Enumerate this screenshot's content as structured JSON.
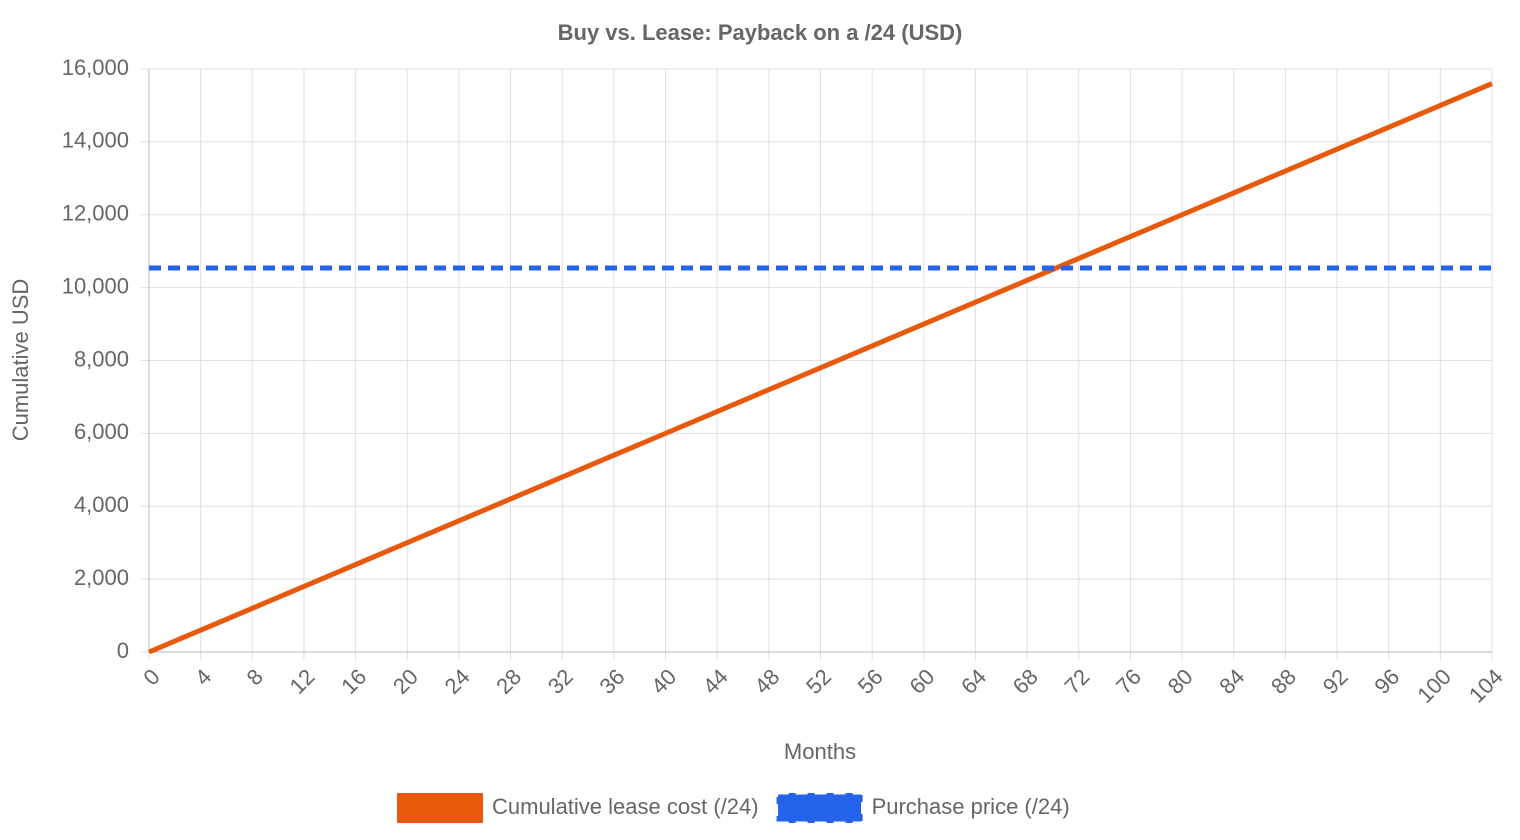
{
  "chart_data": {
    "type": "line",
    "title": "Buy vs. Lease: Payback on a /24 (USD)",
    "x_label": "Months",
    "y_label": "Cumulative USD",
    "x": [
      0,
      4,
      8,
      12,
      16,
      20,
      24,
      28,
      32,
      36,
      40,
      44,
      48,
      52,
      56,
      60,
      64,
      68,
      72,
      76,
      80,
      84,
      88,
      92,
      96,
      100,
      104
    ],
    "series": [
      {
        "name": "Cumulative lease cost (/24)",
        "color": "#e8590c",
        "dashed": false,
        "values": [
          0,
          600,
          1200,
          1800,
          2400,
          3000,
          3600,
          4200,
          4800,
          5400,
          6000,
          6600,
          7200,
          7800,
          8400,
          9000,
          9600,
          10200,
          10800,
          11400,
          12000,
          12600,
          13200,
          13800,
          14400,
          15000,
          15600
        ]
      },
      {
        "name": "Purchase price (/24)",
        "color": "#2563eb",
        "dashed": true,
        "values": [
          10540,
          10540,
          10540,
          10540,
          10540,
          10540,
          10540,
          10540,
          10540,
          10540,
          10540,
          10540,
          10540,
          10540,
          10540,
          10540,
          10540,
          10540,
          10540,
          10540,
          10540,
          10540,
          10540,
          10540,
          10540,
          10540,
          10540
        ]
      }
    ],
    "xlim": [
      0,
      104
    ],
    "xticks": [
      0,
      4,
      8,
      12,
      16,
      20,
      24,
      28,
      32,
      36,
      40,
      44,
      48,
      52,
      56,
      60,
      64,
      68,
      72,
      76,
      80,
      84,
      88,
      92,
      96,
      100,
      104
    ],
    "ylim": [
      0,
      16000
    ],
    "yticks": [
      0,
      {
        "value": 2000,
        "label": "2,000"
      },
      {
        "value": 4000,
        "label": "4,000"
      },
      {
        "value": 6000,
        "label": "6,000"
      },
      {
        "value": 8000,
        "label": "8,000"
      },
      {
        "value": 10000,
        "label": "10,000"
      },
      {
        "value": 12000,
        "label": "12,000"
      },
      {
        "value": 14000,
        "label": "14,000"
      },
      {
        "value": 16000,
        "label": "16,000"
      }
    ],
    "grid": true,
    "legend": "bottom"
  }
}
